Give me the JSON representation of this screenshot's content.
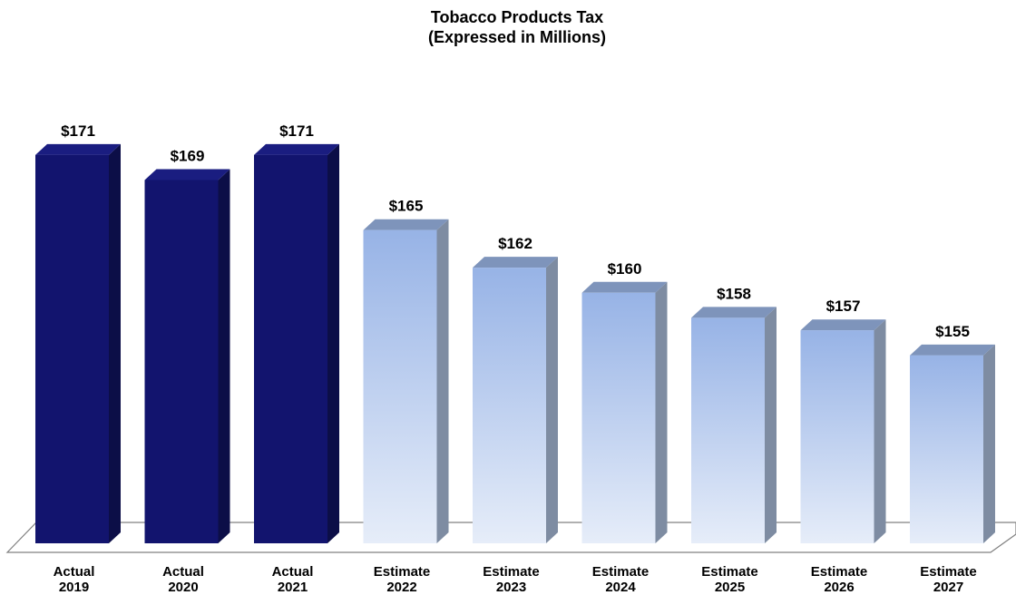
{
  "chart_data": {
    "type": "bar",
    "title": "Tobacco Products Tax",
    "subtitle": "(Expressed in Millions)",
    "xlabel": "",
    "ylabel": "",
    "categories": [
      [
        "Actual",
        "2019"
      ],
      [
        "Actual",
        "2020"
      ],
      [
        "Actual",
        "2021"
      ],
      [
        "Estimate",
        "2022"
      ],
      [
        "Estimate",
        "2023"
      ],
      [
        "Estimate",
        "2024"
      ],
      [
        "Estimate",
        "2025"
      ],
      [
        "Estimate",
        "2026"
      ],
      [
        "Estimate",
        "2027"
      ]
    ],
    "values": [
      171,
      169,
      171,
      165,
      162,
      160,
      158,
      157,
      155
    ],
    "data_labels": [
      "$171",
      "$169",
      "$171",
      "$165",
      "$162",
      "$160",
      "$158",
      "$157",
      "$155"
    ],
    "series_groups": [
      "actual",
      "actual",
      "actual",
      "estimate",
      "estimate",
      "estimate",
      "estimate",
      "estimate",
      "estimate"
    ],
    "ylim": [
      140,
      172
    ],
    "grid": false,
    "style": "3d-columns",
    "colors": {
      "actual_front": "#12146e",
      "actual_side": "#0c0e47",
      "actual_top": "#1a1d80",
      "estimate_top_gradient": "#97b3e6",
      "estimate_bottom_gradient": "#e6edf9",
      "estimate_side": "#7e8ca2",
      "estimate_cap": "#7e94bb",
      "floor": "#ffffff",
      "floor_outline": "#808080"
    }
  }
}
